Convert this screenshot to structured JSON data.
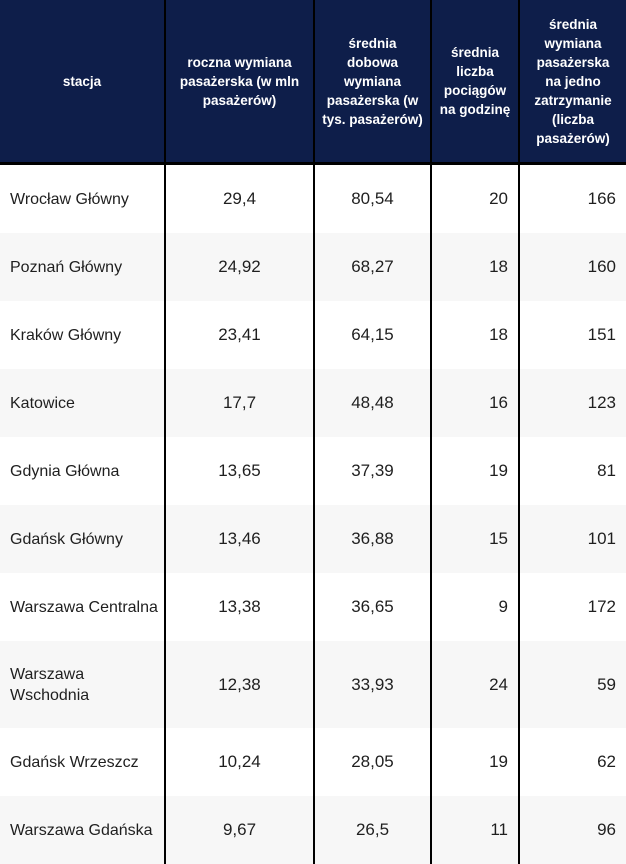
{
  "chart_data": {
    "type": "table",
    "columns": [
      "stacja",
      "roczna wymiana pasażerska (w mln pasażerów)",
      "średnia dobowa wymiana pasażerska (w tys. pasażerów)",
      "średnia liczba pociągów na godzinę",
      "średnia wymiana pasażerska na jedno zatrzymanie (liczba pasażerów)"
    ],
    "rows": [
      [
        "Wrocław Główny",
        "29,4",
        "80,54",
        "20",
        "166"
      ],
      [
        "Poznań Główny",
        "24,92",
        "68,27",
        "18",
        "160"
      ],
      [
        "Kraków Główny",
        "23,41",
        "64,15",
        "18",
        "151"
      ],
      [
        "Katowice",
        "17,7",
        "48,48",
        "16",
        "123"
      ],
      [
        "Gdynia Główna",
        "13,65",
        "37,39",
        "19",
        "81"
      ],
      [
        "Gdańsk Główny",
        "13,46",
        "36,88",
        "15",
        "101"
      ],
      [
        "Warszawa Centralna",
        "13,38",
        "36,65",
        "9",
        "172"
      ],
      [
        "Warszawa Wschodnia",
        "12,38",
        "33,93",
        "24",
        "59"
      ],
      [
        "Gdańsk Wrzeszcz",
        "10,24",
        "28,05",
        "19",
        "62"
      ],
      [
        "Warszawa Gdańska",
        "9,67",
        "26,5",
        "11",
        "96"
      ]
    ],
    "layout": {
      "zebra_striping": true,
      "numeric_alignment": [
        "center",
        "center",
        "right",
        "right"
      ]
    }
  },
  "colors": {
    "header_bg": "#0e1e4a",
    "header_text": "#ffffff",
    "border": "#000000",
    "row_bg": "#ffffff",
    "row_alt_bg": "#f7f7f7",
    "body_text": "#1f1f1f"
  }
}
